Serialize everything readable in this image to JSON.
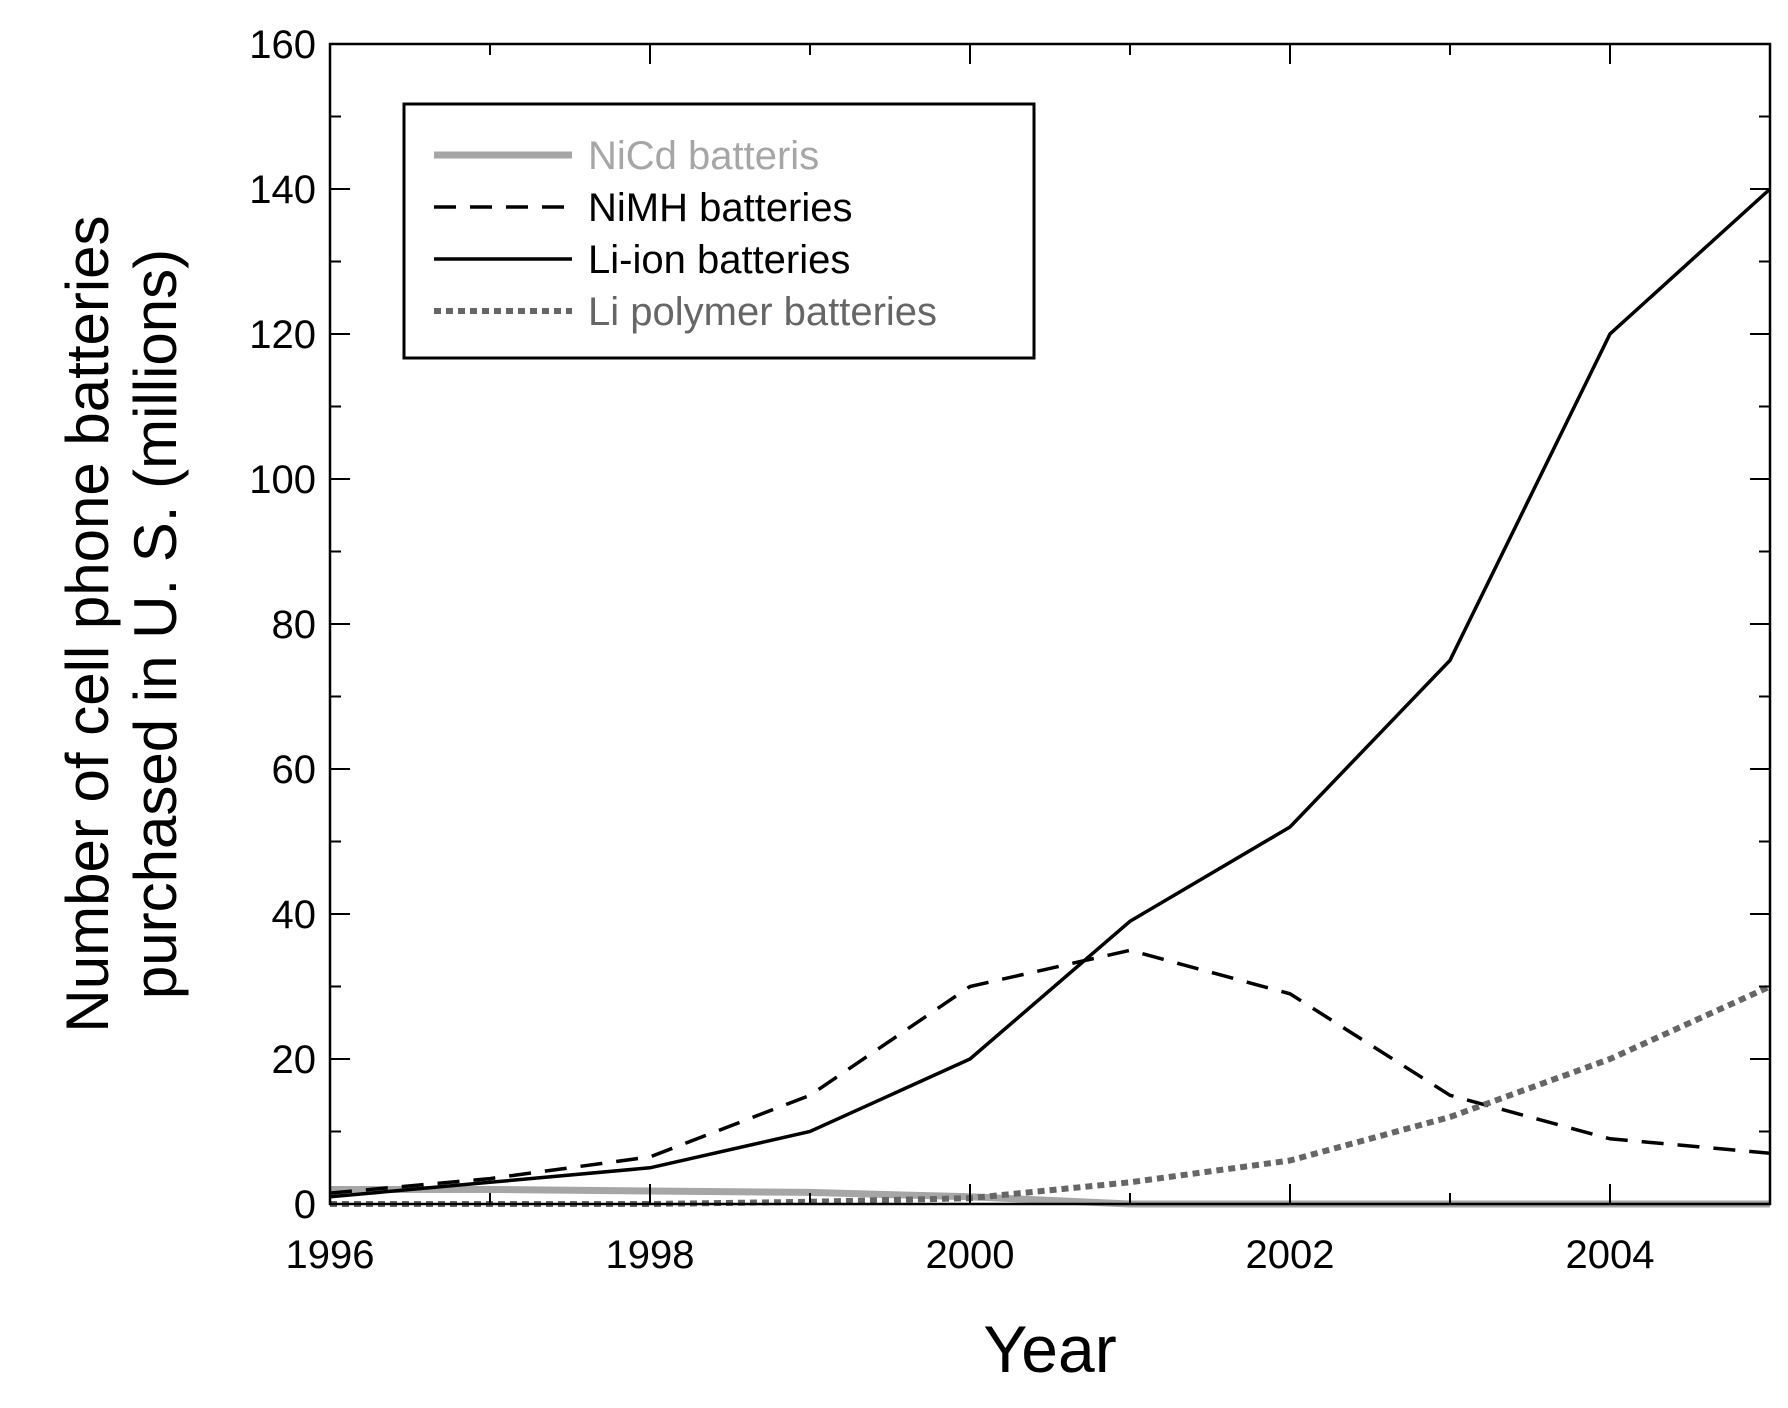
{
  "chart_data": {
    "type": "line",
    "title": "",
    "xlabel": "Year",
    "ylabel_line1": "Number of cell phone batteries",
    "ylabel_line2": "purchased in U. S. (millions)",
    "xlim": [
      1996,
      2005
    ],
    "ylim": [
      0,
      160
    ],
    "xticks": [
      1996,
      1998,
      2000,
      2002,
      2004
    ],
    "yticks": [
      0,
      20,
      40,
      60,
      80,
      100,
      120,
      140,
      160
    ],
    "grid": false,
    "legend_position": "top-left",
    "x": [
      1996,
      1997,
      1998,
      1999,
      2000,
      2001,
      2002,
      2003,
      2004,
      2005
    ],
    "series": [
      {
        "name": "NiCd batteris",
        "style": "solid-thick",
        "color": "#a6a6a6",
        "values": [
          2,
          2,
          1.8,
          1.6,
          1,
          0,
          0,
          0,
          0,
          0
        ]
      },
      {
        "name": "NiMH batteries",
        "style": "dashed",
        "color": "#000000",
        "values": [
          1.5,
          3.5,
          6.5,
          15,
          30,
          35,
          29,
          15,
          9,
          7
        ]
      },
      {
        "name": "Li-ion batteries",
        "style": "solid",
        "color": "#000000",
        "values": [
          1,
          3,
          5,
          10,
          20,
          39,
          52,
          75,
          120,
          140
        ]
      },
      {
        "name": "Li polymer batteries",
        "style": "dotted",
        "color": "#666666",
        "values": [
          0,
          0,
          0,
          0.3,
          0.8,
          3,
          6,
          12,
          20,
          30
        ]
      }
    ]
  }
}
